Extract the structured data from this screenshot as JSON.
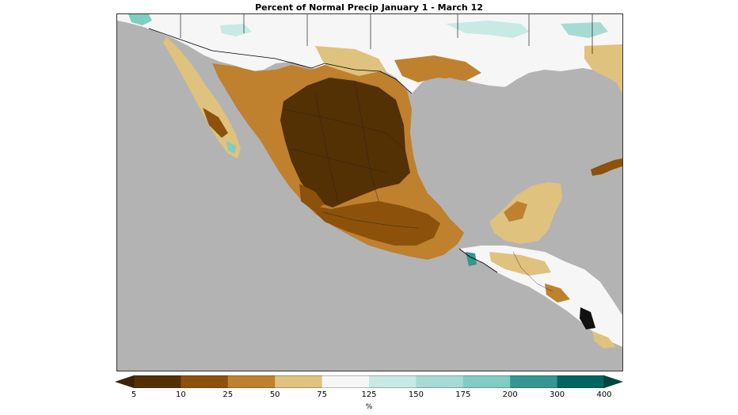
{
  "title": "Percent of Normal Precip January 1 - March 12",
  "colorbar": {
    "unit": "%",
    "ticks": [
      "5",
      "10",
      "25",
      "50",
      "75",
      "125",
      "150",
      "175",
      "200",
      "300",
      "400"
    ],
    "colors": [
      "#543005",
      "#8c510a",
      "#bf812d",
      "#dfc27d",
      "#f6f6f6",
      "#c7eae5",
      "#a6dbd3",
      "#80cdc1",
      "#35978f",
      "#01665e"
    ],
    "under_color": "#3d2304",
    "over_color": "#00473f"
  },
  "map": {
    "ocean_color": "#b3b3b3",
    "region": "Mexico and Central America"
  }
}
